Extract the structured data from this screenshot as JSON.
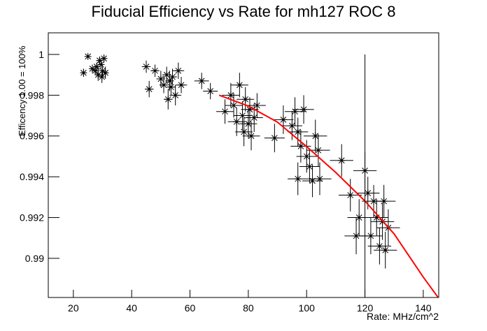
{
  "chart_data": {
    "type": "errorbar-scatter",
    "title": "Fiducial Efficiency vs Rate for mh127 ROC 8",
    "x_label": "Rate: MHz/cm^2",
    "y_label": "Efficency 1.00 = 100%",
    "xlim": [
      11.4,
      145.3
    ],
    "ylim": [
      0.98808,
      1.00106
    ],
    "xticks": [
      20,
      40,
      60,
      80,
      100,
      120,
      140
    ],
    "yticks": [
      0.99,
      0.992,
      0.994,
      0.996,
      0.998,
      1
    ],
    "points": {
      "color": "#000000",
      "x": [
        23.5,
        25,
        26.5,
        27.5,
        28,
        28.5,
        29,
        29.5,
        30,
        30.5,
        31,
        29.8,
        45,
        46,
        48,
        50,
        51,
        52,
        52.5,
        53,
        53.5,
        54,
        55,
        56,
        57,
        64,
        67,
        72,
        74,
        75,
        76,
        77,
        78,
        78.5,
        79,
        80,
        80.5,
        81,
        82,
        83,
        89,
        92,
        95,
        96,
        97,
        98,
        99,
        100,
        101,
        102,
        103,
        104,
        104.5,
        97,
        112,
        115,
        118,
        120,
        121,
        122,
        123,
        124,
        125,
        126,
        126.5,
        127,
        128,
        117
      ],
      "x_errors": [
        0.8,
        0.8,
        0.8,
        0.8,
        0.8,
        0.8,
        0.8,
        0.8,
        0.8,
        0.8,
        0.8,
        0.8,
        1.5,
        1.5,
        1.5,
        1.5,
        1.5,
        1.5,
        1.5,
        1.5,
        1.5,
        1.5,
        2,
        2,
        2,
        2.5,
        2.5,
        3,
        3,
        3,
        3,
        3,
        3,
        3,
        3,
        3,
        3,
        3,
        3,
        3,
        3.5,
        3.5,
        3.5,
        3.5,
        3.5,
        3.5,
        3.5,
        3.5,
        3.5,
        3.5,
        4,
        4,
        4,
        3.5,
        4,
        4,
        4,
        4,
        4,
        4,
        4,
        4,
        4,
        4,
        4,
        4,
        4,
        4
      ],
      "values": [
        0.9991,
        0.9999,
        0.9993,
        0.9992,
        0.9994,
        0.999,
        0.9997,
        0.9995,
        0.9992,
        0.9998,
        0.9991,
        0.9989,
        0.9994,
        0.9983,
        0.9992,
        0.9988,
        0.9985,
        0.999,
        0.9978,
        0.9987,
        0.9984,
        0.9989,
        0.998,
        0.9992,
        0.9985,
        0.9987,
        0.9982,
        0.9972,
        0.998,
        0.9975,
        0.9967,
        0.9985,
        0.997,
        0.9962,
        0.9978,
        0.9966,
        0.9973,
        0.996,
        0.9969,
        0.9975,
        0.9959,
        0.9968,
        0.9965,
        0.9972,
        0.9962,
        0.9955,
        0.9973,
        0.995,
        0.9945,
        0.9938,
        0.996,
        0.9953,
        0.9939,
        0.9939,
        0.9948,
        0.9931,
        0.992,
        0.9943,
        0.9932,
        0.9911,
        0.9928,
        0.992,
        0.9906,
        0.9918,
        0.9928,
        0.9904,
        0.9915,
        0.9911
      ],
      "errors": [
        0.0002,
        0.0001,
        0.0002,
        0.0002,
        0.0002,
        0.0003,
        0.0002,
        0.0002,
        0.0003,
        0.0002,
        0.0003,
        0.0003,
        0.0003,
        0.0004,
        0.0003,
        0.0004,
        0.0004,
        0.0004,
        0.0005,
        0.0005,
        0.0004,
        0.0004,
        0.0005,
        0.0004,
        0.0004,
        0.0004,
        0.0004,
        0.0006,
        0.0006,
        0.0006,
        0.0007,
        0.0006,
        0.0007,
        0.0007,
        0.0006,
        0.0007,
        0.0006,
        0.0007,
        0.0007,
        0.0006,
        0.0007,
        0.0007,
        0.0007,
        0.0007,
        0.0007,
        0.0008,
        0.0007,
        0.0008,
        0.0008,
        0.0008,
        0.0008,
        0.0008,
        0.0008,
        0.0008,
        0.0008,
        0.0008,
        0.0009,
        0.0009,
        0.0008,
        0.0009,
        0.0008,
        0.0009,
        0.0009,
        0.0009,
        0.0008,
        0.0009,
        0.0009,
        0.0009
      ]
    },
    "fit": {
      "color": "#ff0000",
      "x": [
        70,
        80,
        90,
        100,
        110,
        120,
        130,
        140,
        145
      ],
      "values": [
        0.998,
        0.99747,
        0.99668,
        0.99548,
        0.99421,
        0.99281,
        0.9912,
        0.98908,
        0.9881
      ]
    },
    "reference_line": {
      "x": 120,
      "y_top": 1
    }
  }
}
